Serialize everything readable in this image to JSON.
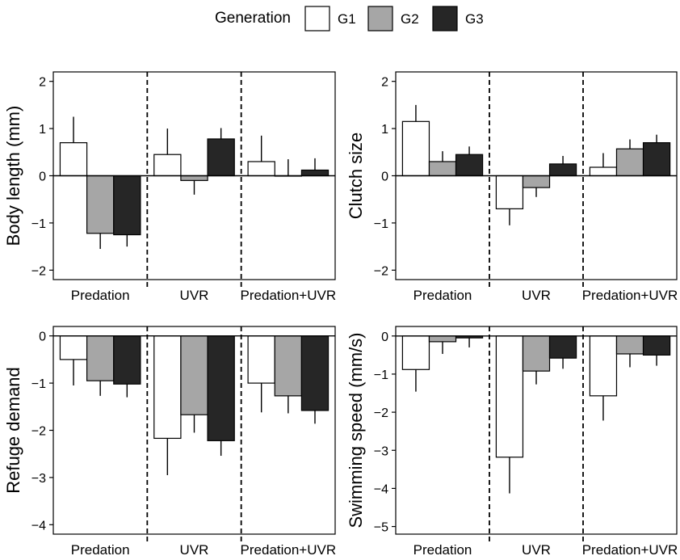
{
  "legend": {
    "title": "Generation",
    "items": [
      {
        "label": "G1",
        "color": "#ffffff"
      },
      {
        "label": "G2",
        "color": "#a6a6a6"
      },
      {
        "label": "G3",
        "color": "#262626"
      }
    ]
  },
  "chart_data": [
    {
      "type": "bar",
      "ylabel": "Body length (mm)",
      "categories": [
        "Predation",
        "UVR",
        "Predation+UVR"
      ],
      "ylim": [
        -2.2,
        2.2
      ],
      "yticks": [
        -2,
        -1,
        0,
        1,
        2
      ],
      "series": [
        {
          "name": "G1",
          "values": [
            0.7,
            0.45,
            0.3
          ],
          "error": [
            0.55,
            0.55,
            0.55
          ]
        },
        {
          "name": "G2",
          "values": [
            -1.22,
            -0.1,
            0.0
          ],
          "error": [
            0.33,
            0.3,
            0.35
          ]
        },
        {
          "name": "G3",
          "values": [
            -1.25,
            0.78,
            0.12
          ],
          "error": [
            0.25,
            0.23,
            0.25
          ]
        }
      ]
    },
    {
      "type": "bar",
      "ylabel": "Clutch size",
      "categories": [
        "Predation",
        "UVR",
        "Predation+UVR"
      ],
      "ylim": [
        -2.2,
        2.2
      ],
      "yticks": [
        -2,
        -1,
        0,
        1,
        2
      ],
      "series": [
        {
          "name": "G1",
          "values": [
            1.15,
            -0.7,
            0.18
          ],
          "error": [
            0.35,
            0.35,
            0.3
          ]
        },
        {
          "name": "G2",
          "values": [
            0.3,
            -0.25,
            0.57
          ],
          "error": [
            0.22,
            0.2,
            0.2
          ]
        },
        {
          "name": "G3",
          "values": [
            0.45,
            0.25,
            0.7
          ],
          "error": [
            0.17,
            0.17,
            0.17
          ]
        }
      ]
    },
    {
      "type": "bar",
      "ylabel": "Refuge demand",
      "categories": [
        "Predation",
        "UVR",
        "Predation+UVR"
      ],
      "ylim": [
        -4.2,
        0.2
      ],
      "yticks": [
        -4,
        -3,
        -2,
        -1,
        0
      ],
      "series": [
        {
          "name": "G1",
          "values": [
            -0.5,
            -2.17,
            -1.0
          ],
          "error": [
            0.55,
            0.78,
            0.62
          ]
        },
        {
          "name": "G2",
          "values": [
            -0.95,
            -1.67,
            -1.27
          ],
          "error": [
            0.32,
            0.38,
            0.37
          ]
        },
        {
          "name": "G3",
          "values": [
            -1.02,
            -2.22,
            -1.58
          ],
          "error": [
            0.28,
            0.32,
            0.28
          ]
        }
      ]
    },
    {
      "type": "bar",
      "ylabel": "Swimming speed (mm/s)",
      "categories": [
        "Predation",
        "UVR",
        "Predation+UVR"
      ],
      "ylim": [
        -5.2,
        0.25
      ],
      "yticks": [
        -5,
        -4,
        -3,
        -2,
        -1,
        0
      ],
      "series": [
        {
          "name": "G1",
          "values": [
            -0.88,
            -3.18,
            -1.57
          ],
          "error": [
            0.58,
            0.95,
            0.65
          ]
        },
        {
          "name": "G2",
          "values": [
            -0.15,
            -0.92,
            -0.47
          ],
          "error": [
            0.32,
            0.35,
            0.35
          ]
        },
        {
          "name": "G3",
          "values": [
            -0.05,
            -0.58,
            -0.5
          ],
          "error": [
            0.25,
            0.28,
            0.28
          ]
        }
      ]
    }
  ]
}
